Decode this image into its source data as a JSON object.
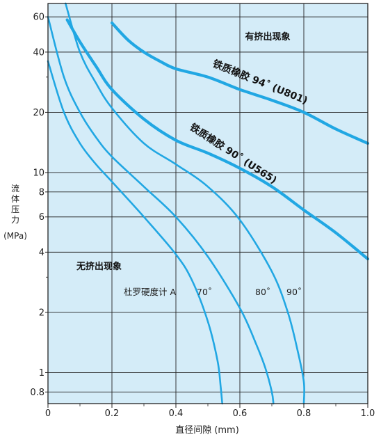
{
  "chart_data": {
    "type": "line",
    "title": "",
    "xlabel": "直径间隙 (mm)",
    "ylabel_lines": [
      "流",
      "体",
      "压",
      "力"
    ],
    "ylabel_unit": "(MPa)",
    "xlim": [
      0,
      1.0
    ],
    "ylim": [
      0.7,
      70
    ],
    "yscale": "log",
    "grid": true,
    "x_ticks": [
      0,
      0.2,
      0.4,
      0.6,
      0.8,
      1.0
    ],
    "x_tick_labels": [
      "0",
      "0.2",
      "0.4",
      "0.6",
      "0.8",
      "1.0"
    ],
    "y_ticks": [
      0.8,
      1,
      2,
      4,
      6,
      8,
      10,
      20,
      40,
      60
    ],
    "y_tick_labels": [
      "0.8",
      "1",
      "2",
      "4",
      "6",
      "8",
      "10",
      "20",
      "40",
      "60"
    ],
    "region_labels": {
      "extrusion": "有挤出现象",
      "no_extrusion": "无挤出现象"
    },
    "hardness_label": "杜罗硬度计 A",
    "hardness_values": [
      "70˚",
      "80˚",
      "90˚"
    ],
    "series": [
      {
        "name": "铁质橡胶 94˚ (U801)",
        "style": "thick",
        "x": [
          0.2,
          0.25,
          0.3,
          0.35,
          0.4,
          0.5,
          0.6,
          0.7,
          0.8,
          0.9,
          1.0
        ],
        "y": [
          56,
          46,
          40,
          36,
          33,
          30,
          26,
          23,
          20,
          16.5,
          14
        ]
      },
      {
        "name": "铁质橡胶 90˚ (U565)",
        "style": "thick",
        "x": [
          0.06,
          0.1,
          0.15,
          0.2,
          0.3,
          0.4,
          0.5,
          0.6,
          0.7,
          0.8,
          0.9,
          1.0
        ],
        "y": [
          58,
          45,
          34,
          26,
          18.5,
          14.5,
          12.5,
          10.5,
          8.5,
          6.5,
          5,
          3.7
        ]
      },
      {
        "name": "90˚",
        "style": "thin",
        "x": [
          0.055,
          0.1,
          0.15,
          0.2,
          0.3,
          0.4,
          0.5,
          0.6,
          0.7,
          0.75,
          0.78,
          0.8,
          0.8
        ],
        "y": [
          70,
          40,
          28,
          21,
          14,
          11,
          8.5,
          5.8,
          3.2,
          2.0,
          1.3,
          0.9,
          0.7
        ]
      },
      {
        "name": "80˚",
        "style": "thin",
        "x": [
          0.0,
          0.05,
          0.1,
          0.15,
          0.2,
          0.3,
          0.4,
          0.5,
          0.6,
          0.65,
          0.68,
          0.7,
          0.705
        ],
        "y": [
          60,
          30,
          20,
          15,
          12,
          8.5,
          6,
          3.8,
          2.1,
          1.4,
          1.05,
          0.8,
          0.7
        ]
      },
      {
        "name": "70˚",
        "style": "thin",
        "x": [
          0.0,
          0.05,
          0.1,
          0.15,
          0.2,
          0.3,
          0.4,
          0.45,
          0.5,
          0.53,
          0.54,
          0.545
        ],
        "y": [
          36,
          20,
          14,
          11,
          9,
          6,
          3.9,
          2.9,
          1.8,
          1.15,
          0.85,
          0.7
        ]
      }
    ],
    "colors": {
      "plot_bg": "#d4ecf8",
      "curve": "#21a7e3",
      "grid": "#222222"
    }
  }
}
